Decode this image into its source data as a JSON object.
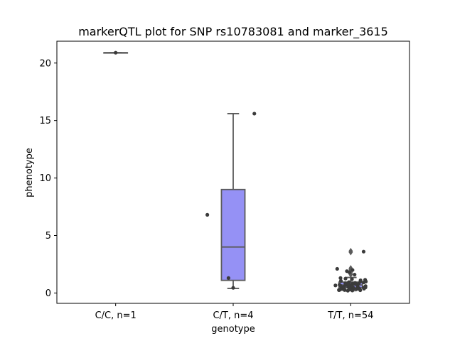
{
  "colors": {
    "box_fill": "#9591f5",
    "box_edge": "#5a5a5a",
    "point": "#3b3b3b",
    "axis": "#000000"
  },
  "chart_data": {
    "type": "box",
    "title": "markerQTL plot for SNP rs10783081 and marker_3615",
    "xlabel": "genotype",
    "ylabel": "phenotype",
    "ylim": [
      -0.9,
      21.9
    ],
    "yticks": [
      0,
      5,
      10,
      15,
      20
    ],
    "grid": false,
    "categories": [
      "C/C, n=1",
      "C/T, n=4",
      "T/T, n=54"
    ],
    "boxes": [
      {
        "category": "C/C, n=1",
        "q1": 20.9,
        "median": 20.9,
        "q3": 20.9,
        "whisker_low": 20.9,
        "whisker_high": 20.9,
        "fliers": []
      },
      {
        "category": "C/T, n=4",
        "q1": 1.1,
        "median": 4.0,
        "q3": 9.0,
        "whisker_low": 0.4,
        "whisker_high": 15.6,
        "fliers": []
      },
      {
        "category": "T/T, n=54",
        "q1": 0.45,
        "median": 0.7,
        "q3": 0.95,
        "whisker_low": 0.2,
        "whisker_high": 1.35,
        "fliers": [
          1.6,
          1.75,
          1.85,
          1.95,
          2.05,
          2.15,
          3.55,
          3.65
        ]
      }
    ],
    "points": [
      {
        "category": "C/C, n=1",
        "values": [
          20.9
        ]
      },
      {
        "category": "C/T, n=4",
        "values": [
          15.6,
          6.8,
          1.3,
          0.45
        ]
      },
      {
        "category": "T/T, n=54",
        "values": [
          3.6,
          2.1,
          2.0,
          1.9,
          1.8,
          1.6,
          1.3,
          1.25,
          1.2,
          1.15,
          1.1,
          1.05,
          1.0,
          0.98,
          0.95,
          0.92,
          0.9,
          0.88,
          0.85,
          0.82,
          0.8,
          0.78,
          0.75,
          0.72,
          0.7,
          0.68,
          0.66,
          0.64,
          0.62,
          0.6,
          0.58,
          0.56,
          0.54,
          0.52,
          0.5,
          0.48,
          0.46,
          0.44,
          0.42,
          0.4,
          0.38,
          0.36,
          0.35,
          0.34,
          0.32,
          0.3,
          0.3,
          0.28,
          0.27,
          0.26,
          0.25,
          0.24,
          0.22,
          0.2
        ]
      }
    ]
  }
}
